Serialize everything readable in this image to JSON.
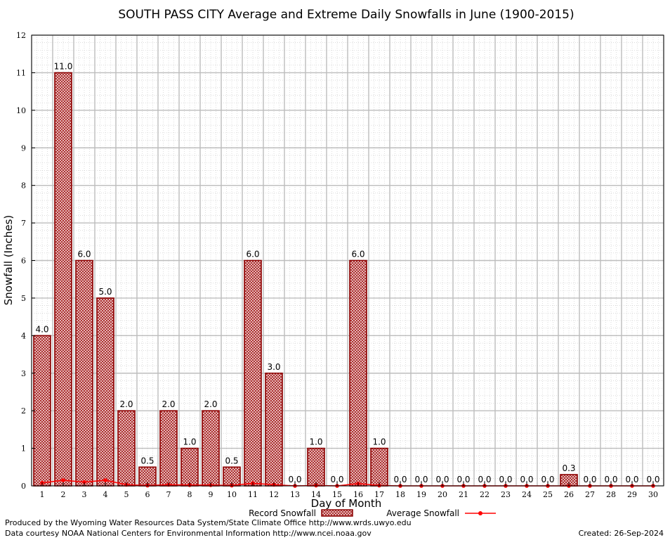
{
  "chart_data": {
    "type": "bar",
    "title": "SOUTH PASS CITY Average and Extreme Daily Snowfalls in June (1900-2015)",
    "xlabel": "Day of Month",
    "ylabel": "Snowfall (Inches)",
    "ylim": [
      0,
      12
    ],
    "yticks": [
      "0",
      "1",
      "2",
      "3",
      "4",
      "5",
      "6",
      "7",
      "8",
      "9",
      "10",
      "11",
      "12"
    ],
    "categories": [
      "1",
      "2",
      "3",
      "4",
      "5",
      "6",
      "7",
      "8",
      "9",
      "10",
      "11",
      "12",
      "13",
      "14",
      "15",
      "16",
      "17",
      "18",
      "19",
      "20",
      "21",
      "22",
      "23",
      "24",
      "25",
      "26",
      "27",
      "28",
      "29",
      "30"
    ],
    "series": [
      {
        "name": "Record Snowfall",
        "kind": "bar",
        "color": "#8b0000",
        "values": [
          4.0,
          11.0,
          6.0,
          5.0,
          2.0,
          0.5,
          2.0,
          1.0,
          2.0,
          0.5,
          6.0,
          3.0,
          0.0,
          1.0,
          0.0,
          6.0,
          1.0,
          0.0,
          0.0,
          0.0,
          0.0,
          0.0,
          0.0,
          0.0,
          0.0,
          0.3,
          0.0,
          0.0,
          0.0,
          0.0
        ],
        "labels": [
          "4.0",
          "11.0",
          "6.0",
          "5.0",
          "2.0",
          "0.5",
          "2.0",
          "1.0",
          "2.0",
          "0.5",
          "6.0",
          "3.0",
          "0.0",
          "1.0",
          "0.0",
          "6.0",
          "1.0",
          "0.0",
          "0.0",
          "0.0",
          "0.0",
          "0.0",
          "0.0",
          "0.0",
          "0.0",
          "0.3",
          "0.0",
          "0.0",
          "0.0",
          "0.0"
        ]
      },
      {
        "name": "Average Snowfall",
        "kind": "line",
        "color": "#ff0000",
        "values": [
          0.08,
          0.15,
          0.1,
          0.15,
          0.03,
          0.01,
          0.03,
          0.02,
          0.02,
          0.01,
          0.07,
          0.03,
          0.0,
          0.01,
          0.0,
          0.06,
          0.01,
          0.0,
          0.0,
          0.0,
          0.0,
          0.0,
          0.0,
          0.0,
          0.0,
          0.0,
          0.0,
          0.0,
          0.0,
          0.0
        ]
      }
    ],
    "grid": true,
    "legend": "bottom"
  },
  "footer": {
    "produced_by": "Produced by the Wyoming Water Resources Data System/State Climate Office http://www.wrds.uwyo.edu",
    "courtesy": "Data courtesy NOAA National Centers for Environmental Information http://www.ncei.noaa.gov",
    "created": "Created:  26-Sep-2024"
  }
}
